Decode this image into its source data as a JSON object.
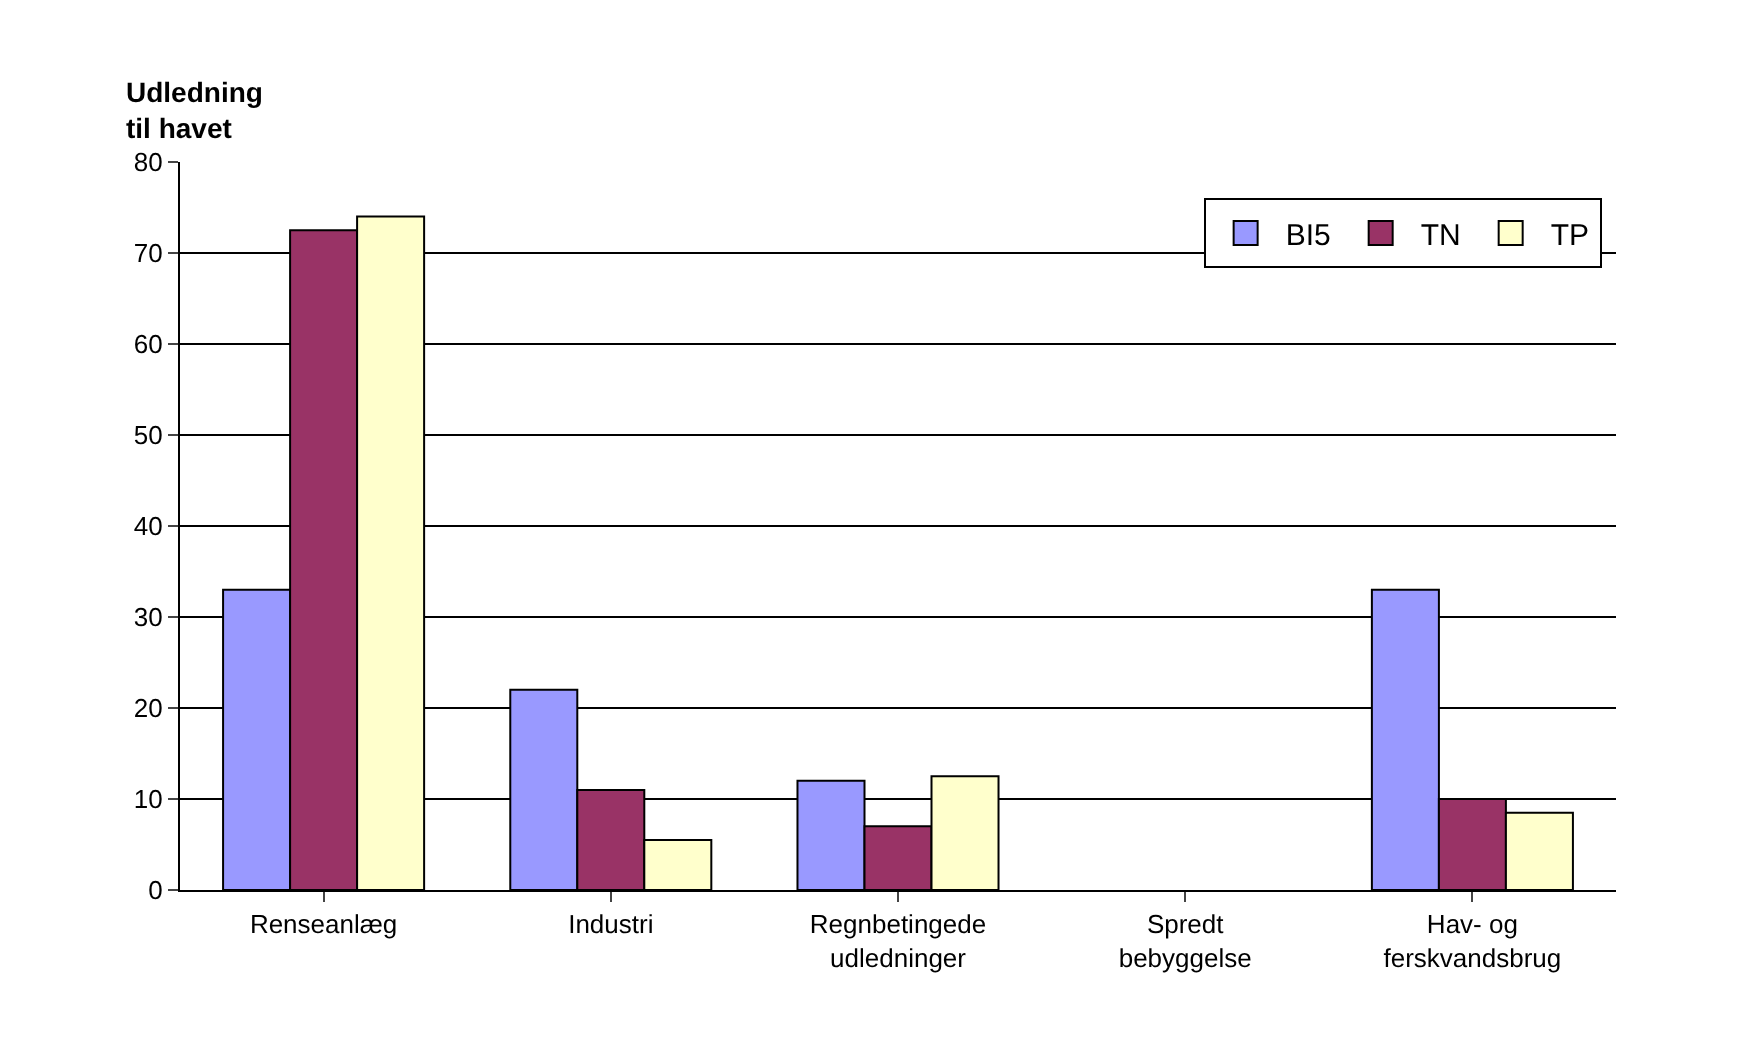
{
  "chart_data": {
    "type": "bar",
    "ylabel": "Udledning til havet",
    "categories": [
      "Renseanlæg",
      "Industri",
      "Regnbetingede udledninger",
      "Spredt bebyggelse",
      "Hav- og ferskvandsbrug"
    ],
    "series": [
      {
        "name": "BI5",
        "color": "#9999ff",
        "values": [
          33,
          22,
          12,
          null,
          33
        ]
      },
      {
        "name": "TN",
        "color": "#993366",
        "values": [
          72.5,
          11,
          7,
          null,
          10
        ]
      },
      {
        "name": "TP",
        "color": "#ffffcc",
        "values": [
          74,
          5.5,
          12.5,
          null,
          8.5
        ]
      }
    ],
    "ylim": [
      0,
      80
    ],
    "yticks": [
      0,
      10,
      20,
      30,
      40,
      50,
      60,
      70,
      80
    ],
    "grid": "y",
    "legend": "top right"
  }
}
